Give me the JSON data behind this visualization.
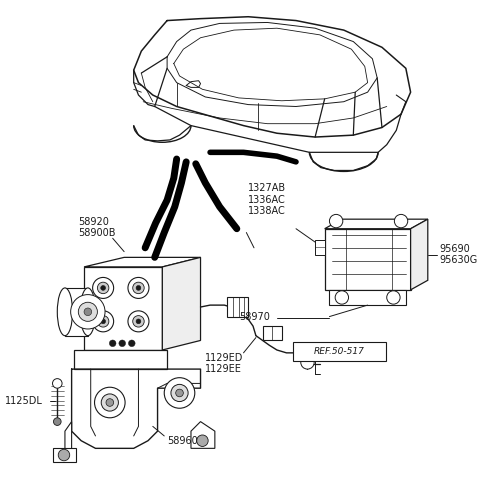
{
  "bg_color": "#ffffff",
  "lc": "#1a1a1a",
  "font_size": 7.0,
  "labels": {
    "58920_58900B": "58920\n58900B",
    "1327AB_group": "1327AB\n1336AC\n1338AC",
    "95690_group": "95690\n95630G",
    "58970": "58970",
    "1129ED_group": "1129ED\n1129EE",
    "REF50517": "REF.50-517",
    "1125DL": "1125DL",
    "58960": "58960"
  }
}
